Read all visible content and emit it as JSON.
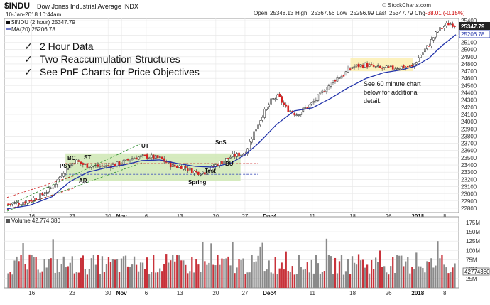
{
  "header": {
    "symbol": "$INDU",
    "name": "Dow Jones Industrial Average INDX",
    "date": "10-Jan-2018 10:44am",
    "open_label": "Open",
    "open": "25348.13",
    "high_label": "High",
    "high": "25367.56",
    "low_label": "Low",
    "low": "25256.99",
    "last_label": "Last",
    "last": "25347.79",
    "chg_label": "Chg",
    "chg": "-38.01 (-0.15%)",
    "brand": "© StockCharts.com"
  },
  "legend": {
    "series1": "$INDU (2 hour) 25347.79",
    "series2": "MA(20) 25206.78",
    "volume": "Volume 42,774,380"
  },
  "bullets": [
    "2 Hour Data",
    "Two Reaccumulation Structures",
    "See PnF Charts for Price Objectives"
  ],
  "bullet_mark": "✓",
  "annotations": {
    "ps": "PSY",
    "bc": "BC",
    "st": "ST",
    "ar": "AR",
    "ut": "UT",
    "sos": "SoS",
    "bu": "BU",
    "test": "Test",
    "spring": "Spring",
    "note": [
      "See 60 minute chart",
      "below for additional",
      "detail."
    ]
  },
  "price_badges": {
    "last": "25347.79",
    "ma": "25206.78"
  },
  "volume_badge": "42774380",
  "chart_data": {
    "type": "candlestick",
    "title": "$INDU Dow Jones Industrial Average INDX",
    "interval": "2 hour",
    "y_ticks": [
      22800,
      22900,
      23000,
      23100,
      23200,
      23300,
      23400,
      23500,
      23600,
      23700,
      23800,
      23900,
      24000,
      24100,
      24200,
      24300,
      24400,
      24500,
      24600,
      24700,
      24800,
      24900,
      25000,
      25100,
      25200,
      25300,
      25400
    ],
    "ylim": [
      22740,
      25430
    ],
    "x_ticks": [
      {
        "label": "16",
        "pos": 0.055
      },
      {
        "label": "23",
        "pos": 0.145
      },
      {
        "label": "30",
        "pos": 0.225
      },
      {
        "label": "Nov",
        "pos": 0.255,
        "bold": true
      },
      {
        "label": "6",
        "pos": 0.31
      },
      {
        "label": "13",
        "pos": 0.385
      },
      {
        "label": "20",
        "pos": 0.465
      },
      {
        "label": "27",
        "pos": 0.53
      },
      {
        "label": "Dec4",
        "pos": 0.585,
        "bold": true
      },
      {
        "label": "11",
        "pos": 0.68
      },
      {
        "label": "18",
        "pos": 0.77
      },
      {
        "label": "26",
        "pos": 0.85
      },
      {
        "label": "2018",
        "pos": 0.915,
        "bold": true
      },
      {
        "label": "8",
        "pos": 0.975
      }
    ],
    "price_anchors": [
      [
        0,
        22860
      ],
      [
        0.03,
        22880
      ],
      [
        0.07,
        22960
      ],
      [
        0.1,
        23100
      ],
      [
        0.125,
        23320
      ],
      [
        0.15,
        23460
      ],
      [
        0.17,
        23400
      ],
      [
        0.2,
        23380
      ],
      [
        0.23,
        23390
      ],
      [
        0.25,
        23420
      ],
      [
        0.28,
        23500
      ],
      [
        0.31,
        23520
      ],
      [
        0.34,
        23490
      ],
      [
        0.37,
        23380
      ],
      [
        0.39,
        23380
      ],
      [
        0.42,
        23300
      ],
      [
        0.44,
        23300
      ],
      [
        0.47,
        23420
      ],
      [
        0.5,
        23520
      ],
      [
        0.53,
        23560
      ],
      [
        0.55,
        23850
      ],
      [
        0.57,
        24100
      ],
      [
        0.59,
        24300
      ],
      [
        0.605,
        24350
      ],
      [
        0.62,
        24200
      ],
      [
        0.645,
        24100
      ],
      [
        0.68,
        24250
      ],
      [
        0.71,
        24450
      ],
      [
        0.73,
        24580
      ],
      [
        0.75,
        24650
      ],
      [
        0.77,
        24760
      ],
      [
        0.8,
        24790
      ],
      [
        0.83,
        24740
      ],
      [
        0.86,
        24740
      ],
      [
        0.88,
        24760
      ],
      [
        0.905,
        24760
      ],
      [
        0.92,
        24900
      ],
      [
        0.94,
        25050
      ],
      [
        0.96,
        25250
      ],
      [
        0.985,
        25360
      ],
      [
        1,
        25347
      ]
    ],
    "ma_anchors": [
      [
        0,
        22790
      ],
      [
        0.05,
        22840
      ],
      [
        0.1,
        22960
      ],
      [
        0.14,
        23170
      ],
      [
        0.18,
        23300
      ],
      [
        0.22,
        23360
      ],
      [
        0.26,
        23400
      ],
      [
        0.3,
        23460
      ],
      [
        0.34,
        23470
      ],
      [
        0.38,
        23420
      ],
      [
        0.42,
        23380
      ],
      [
        0.46,
        23370
      ],
      [
        0.5,
        23430
      ],
      [
        0.53,
        23540
      ],
      [
        0.56,
        23700
      ],
      [
        0.6,
        23960
      ],
      [
        0.64,
        24150
      ],
      [
        0.68,
        24190
      ],
      [
        0.72,
        24320
      ],
      [
        0.76,
        24470
      ],
      [
        0.8,
        24600
      ],
      [
        0.84,
        24680
      ],
      [
        0.88,
        24720
      ],
      [
        0.91,
        24770
      ],
      [
        0.94,
        24880
      ],
      [
        0.97,
        25060
      ],
      [
        1,
        25206
      ]
    ],
    "volume_ticks": [
      "25M",
      "50M",
      "75M",
      "100M",
      "125M",
      "150M",
      "175M"
    ],
    "volume_ylim": [
      0,
      190000000
    ],
    "reaccumulation_zones": [
      {
        "x0": 0.13,
        "x1": 0.52,
        "y0": 23180,
        "y1": 23560
      },
      {
        "x0": 0.765,
        "x1": 0.905,
        "y0": 24700,
        "y1": 24880
      }
    ]
  }
}
